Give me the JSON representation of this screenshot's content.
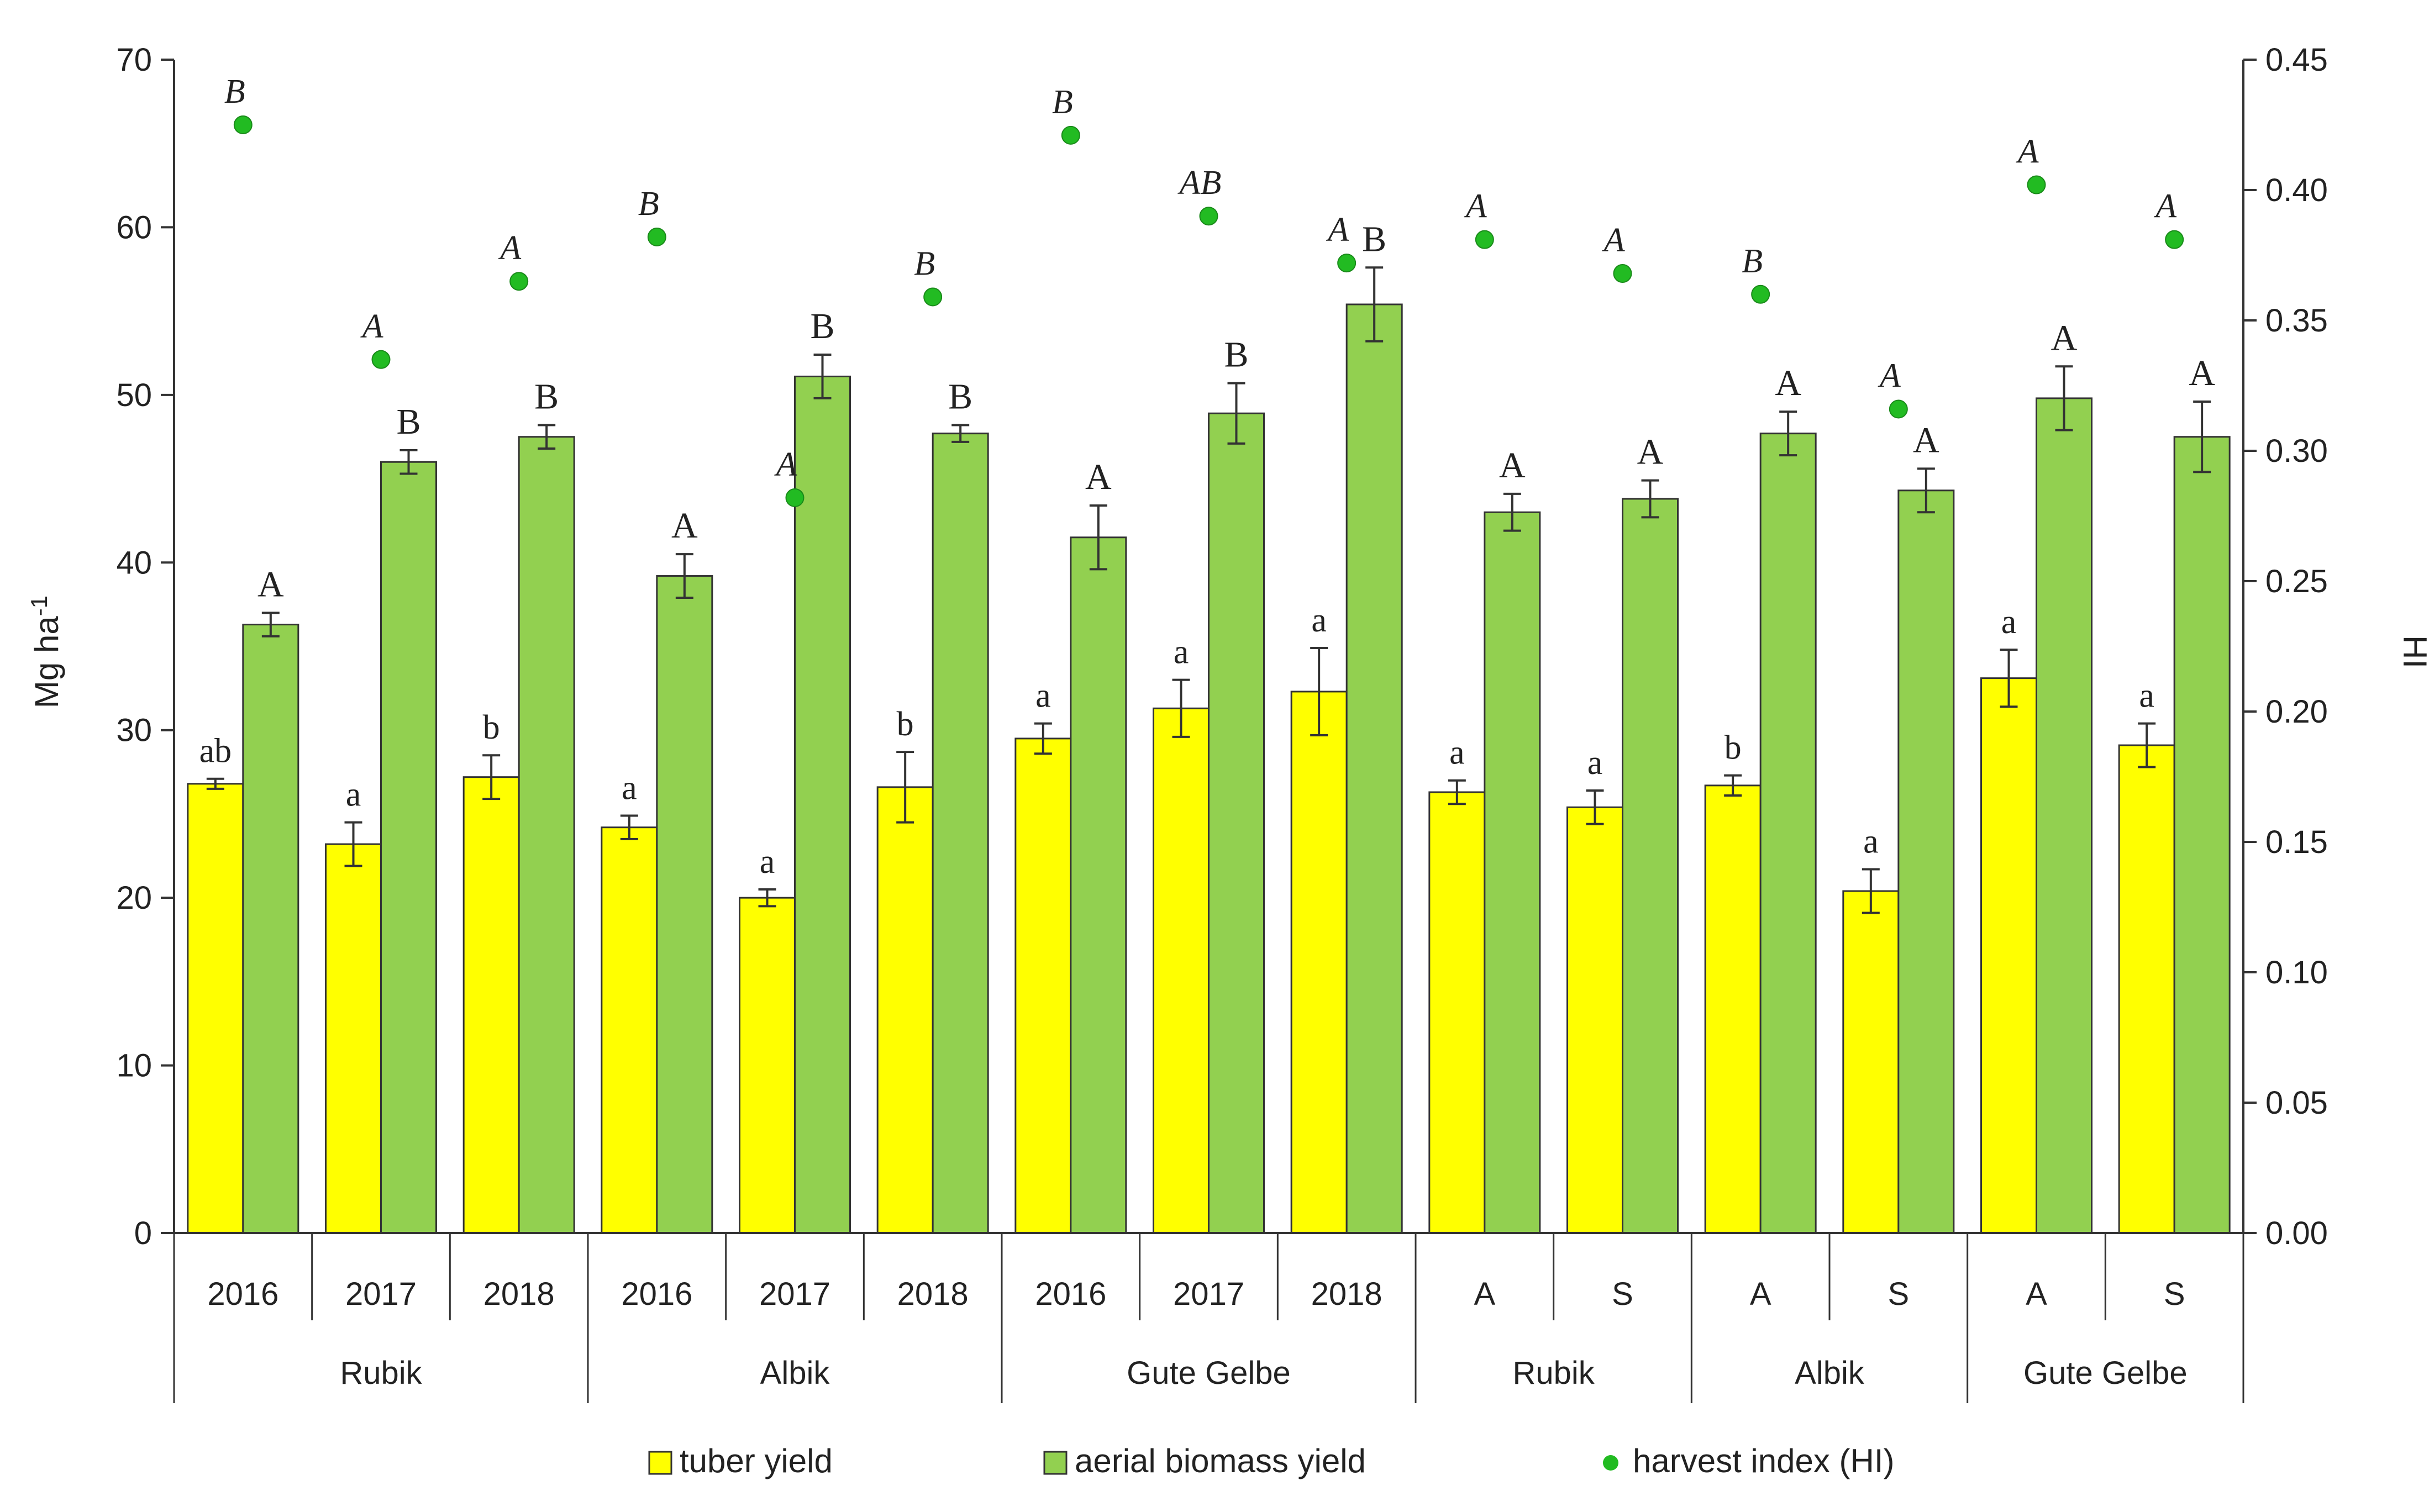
{
  "chart_data": {
    "type": "bar",
    "ylabel": "Mg ha",
    "ylabel_sup": "-1",
    "y2label": "HI",
    "ylim": [
      0,
      70
    ],
    "y_ticks": [
      "0",
      "10",
      "20",
      "30",
      "40",
      "50",
      "60",
      "70"
    ],
    "y2lim": [
      0,
      0.45
    ],
    "y2_ticks": [
      "0.00",
      "0.05",
      "0.10",
      "0.15",
      "0.20",
      "0.25",
      "0.30",
      "0.35",
      "0.40",
      "0.45"
    ],
    "categories": [
      "2016",
      "2017",
      "2018",
      "2016",
      "2017",
      "2018",
      "2016",
      "2017",
      "2018",
      "A",
      "S",
      "A",
      "S",
      "A",
      "S"
    ],
    "groups": [
      {
        "label": "Rubik",
        "span": 3
      },
      {
        "label": "Albik",
        "span": 3
      },
      {
        "label": "Gute Gelbe",
        "span": 3
      },
      {
        "label": "Rubik",
        "span": 2
      },
      {
        "label": "Albik",
        "span": 2
      },
      {
        "label": "Gute Gelbe",
        "span": 2
      }
    ],
    "series": [
      {
        "name": "tuber yield",
        "color": "#ffff00",
        "values": [
          26.8,
          23.2,
          27.2,
          24.2,
          20.0,
          26.6,
          29.5,
          31.3,
          32.3,
          26.3,
          25.4,
          26.7,
          20.4,
          33.1,
          29.1
        ],
        "errors": [
          0.3,
          1.3,
          1.3,
          0.7,
          0.5,
          2.1,
          0.9,
          1.7,
          2.6,
          0.7,
          1.0,
          0.6,
          1.3,
          1.7,
          1.3
        ],
        "labels": [
          "ab",
          "a",
          "b",
          "a",
          "a",
          "b",
          "a",
          "a",
          "a",
          "a",
          "a",
          "b",
          "a",
          "a",
          "a"
        ]
      },
      {
        "name": "aerial biomass yield",
        "color": "#92d050",
        "values": [
          36.3,
          46.0,
          47.5,
          39.2,
          51.1,
          47.7,
          41.5,
          48.9,
          55.4,
          43.0,
          43.8,
          47.7,
          44.3,
          49.8,
          47.5
        ],
        "errors": [
          0.7,
          0.7,
          0.7,
          1.3,
          1.3,
          0.5,
          1.9,
          1.8,
          2.2,
          1.1,
          1.1,
          1.3,
          1.3,
          1.9,
          2.1
        ],
        "labels": [
          "A",
          "B",
          "B",
          "A",
          "B",
          "B",
          "A",
          "B",
          "B",
          "A",
          "A",
          "A",
          "A",
          "A",
          "A"
        ]
      },
      {
        "name": "harvest index (HI)",
        "color": "#22bb22",
        "axis": "right",
        "values": [
          0.425,
          0.335,
          0.365,
          0.382,
          0.282,
          0.359,
          0.421,
          0.39,
          0.372,
          0.381,
          0.368,
          0.36,
          0.316,
          0.402,
          0.381
        ],
        "labels": [
          "B",
          "A",
          "A",
          "B",
          "A",
          "B",
          "B",
          "AB",
          "A",
          "A",
          "A",
          "B",
          "A",
          "A",
          "A"
        ]
      }
    ],
    "legend": [
      "tuber yield",
      "aerial biomass yield",
      "harvest index (HI)"
    ]
  }
}
